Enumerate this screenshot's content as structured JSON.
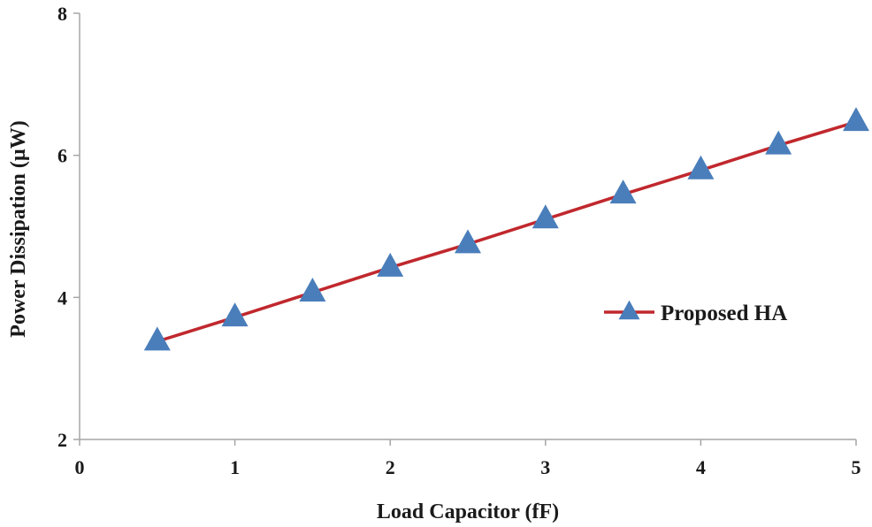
{
  "chart_data": {
    "type": "line",
    "title": "",
    "xlabel": "Load Capacitor (fF)",
    "ylabel": "Power Dissipation (µW)",
    "xlim": [
      0,
      5
    ],
    "ylim": [
      2,
      8
    ],
    "xticks": [
      0,
      1,
      2,
      3,
      4,
      5
    ],
    "yticks": [
      2,
      4,
      6,
      8
    ],
    "grid": false,
    "legend_position": "right",
    "series": [
      {
        "name": "Proposed HA",
        "line_color": "#c0282d",
        "marker": "triangle",
        "marker_color": "#4a7ebb",
        "x": [
          0.5,
          1.0,
          1.5,
          2.0,
          2.5,
          3.0,
          3.5,
          4.0,
          4.5,
          5.0
        ],
        "y": [
          3.38,
          3.72,
          4.07,
          4.42,
          4.75,
          5.1,
          5.45,
          5.79,
          6.14,
          6.47
        ]
      }
    ]
  }
}
